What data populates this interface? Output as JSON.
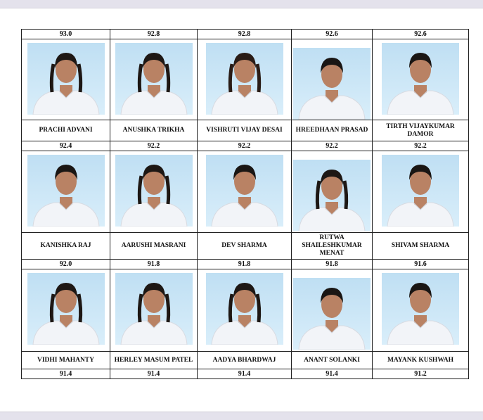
{
  "top_scores": [
    "93.0",
    "92.8",
    "92.8",
    "92.6",
    "92.6"
  ],
  "rows": [
    {
      "students": [
        {
          "name": "PRACHI ADVANI",
          "score": "92.4",
          "hair": "#1d1714",
          "braids": true
        },
        {
          "name": "ANUSHKA TRIKHA",
          "score": "92.2",
          "hair": "#1d1714",
          "braids": true
        },
        {
          "name": "VISHRUTI VIJAY DESAI",
          "score": "92.2",
          "hair": "#2a1c16",
          "braids": true
        },
        {
          "name": "HREEDHAAN PRASAD",
          "score": "92.2",
          "hair": "#1a1614",
          "braids": false
        },
        {
          "name": "TIRTH VIJAYKUMAR DAMOR",
          "score": "92.2",
          "hair": "#1a1614",
          "braids": false
        }
      ]
    },
    {
      "students": [
        {
          "name": "KANISHKA RAJ",
          "score": "92.0",
          "hair": "#1a1614",
          "braids": false
        },
        {
          "name": "AARUSHI MASRANI",
          "score": "91.8",
          "hair": "#1d1714",
          "braids": true
        },
        {
          "name": "DEV SHARMA",
          "score": "91.8",
          "hair": "#1a1614",
          "braids": false
        },
        {
          "name": "RUTWA SHAILESHKUMAR MENAT",
          "score": "91.8",
          "hair": "#1d1714",
          "braids": true
        },
        {
          "name": "SHIVAM SHARMA",
          "score": "91.6",
          "hair": "#1a1614",
          "braids": false
        }
      ]
    },
    {
      "students": [
        {
          "name": "VIDHI MAHANTY",
          "score": "91.4",
          "hair": "#1d1714",
          "braids": true
        },
        {
          "name": "HERLEY MASUM PATEL",
          "score": "91.4",
          "hair": "#1d1714",
          "braids": true
        },
        {
          "name": "AADYA BHARDWAJ",
          "score": "91.4",
          "hair": "#1d1714",
          "braids": true
        },
        {
          "name": "ANANT SOLANKI",
          "score": "91.4",
          "hair": "#1a1614",
          "braids": false
        },
        {
          "name": "MAYANK KUSHWAH",
          "score": "91.2",
          "hair": "#1a1614",
          "braids": false
        }
      ]
    }
  ],
  "colors": {
    "photo_bg": "#c9e4f5",
    "uniform": "#f2f4f8",
    "skin": "#b98264"
  }
}
